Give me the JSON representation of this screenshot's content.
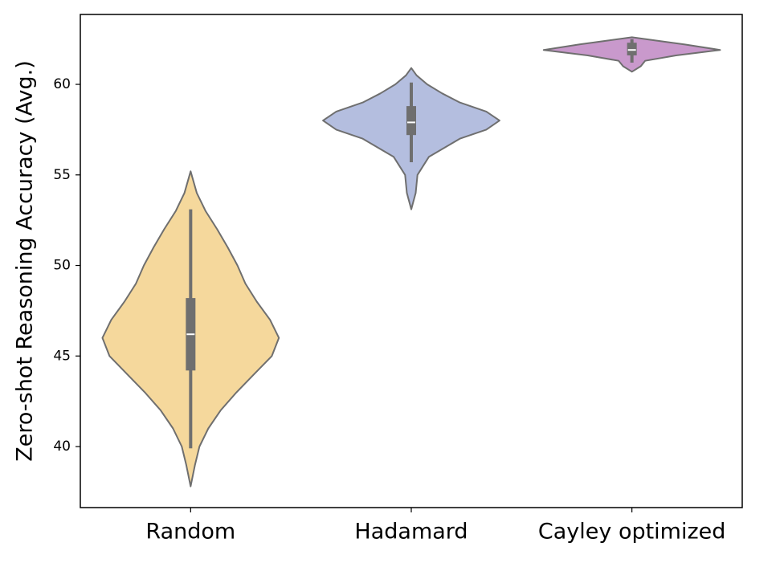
{
  "chart_data": {
    "type": "violin",
    "y_label": "Zero-shot Reasoning Accuracy (Avg.)",
    "categories": [
      "Random",
      "Hadamard",
      "Cayley optimized"
    ],
    "ylim": [
      36.63,
      63.86
    ],
    "yticks": [
      40,
      45,
      50,
      55,
      60
    ],
    "edge_color": "#6f6f6f",
    "box_color": "#6f6f6f",
    "median_color": "#ffffff",
    "violins": [
      {
        "color": "#f5d89c",
        "profile": {
          "y": [
            37.8,
            39,
            40,
            41,
            42,
            43,
            44,
            45,
            46,
            47,
            48,
            49,
            50,
            51,
            52,
            53,
            54,
            55.2
          ],
          "width": [
            0,
            0.05,
            0.1,
            0.2,
            0.34,
            0.52,
            0.72,
            0.92,
            1.0,
            0.9,
            0.75,
            0.62,
            0.53,
            0.42,
            0.3,
            0.17,
            0.07,
            0
          ]
        },
        "box": {
          "whisker_low": 39.9,
          "q1": 44.2,
          "median": 46.2,
          "q3": 48.2,
          "whisker_high": 53.1
        }
      },
      {
        "color": "#b4bedf",
        "profile": {
          "y": [
            53.1,
            54,
            55,
            56,
            57,
            57.5,
            58,
            58.5,
            59,
            59.5,
            60,
            60.5,
            60.9
          ],
          "width": [
            0,
            0.05,
            0.07,
            0.2,
            0.55,
            0.85,
            1.0,
            0.85,
            0.55,
            0.35,
            0.18,
            0.06,
            0
          ]
        },
        "box": {
          "whisker_low": 55.7,
          "q1": 57.2,
          "median": 57.9,
          "q3": 58.8,
          "whisker_high": 60.1
        }
      },
      {
        "color": "#c999cc",
        "profile": {
          "y": [
            60.7,
            61,
            61.3,
            61.6,
            61.9,
            62.2,
            62.4,
            62.6
          ],
          "width": [
            0,
            0.1,
            0.15,
            0.5,
            1.0,
            0.6,
            0.3,
            0
          ]
        },
        "box": {
          "whisker_low": 61.2,
          "q1": 61.6,
          "median": 61.9,
          "q3": 62.3,
          "whisker_high": 62.5
        }
      }
    ]
  }
}
